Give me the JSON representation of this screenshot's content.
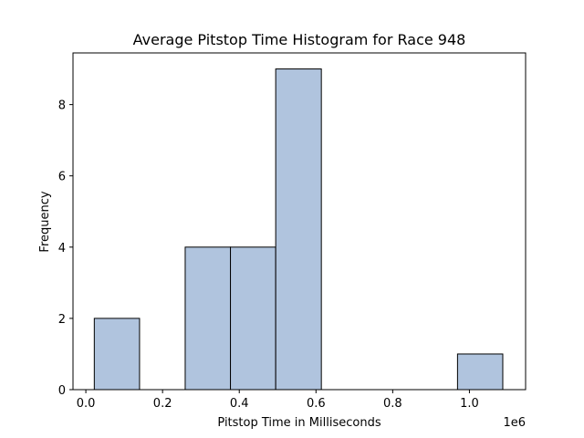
{
  "chart_data": {
    "type": "bar",
    "title": "Average Pitstop Time Histogram for Race 948",
    "xlabel": "Pitstop Time in Milliseconds",
    "ylabel": "Frequency",
    "x_offset_label": "1e6",
    "xlim": [
      -0.0335,
      1.1465
    ],
    "ylim": [
      0,
      9.45
    ],
    "x_ticks": [
      0.0,
      0.2,
      0.4,
      0.6,
      0.8,
      1.0
    ],
    "x_tick_labels": [
      "0.0",
      "0.2",
      "0.4",
      "0.6",
      "0.8",
      "1.0"
    ],
    "y_ticks": [
      0,
      2,
      4,
      6,
      8
    ],
    "y_tick_labels": [
      "0",
      "2",
      "4",
      "6",
      "8"
    ],
    "bar_color": "#b0c4de",
    "edge_color": "#000000",
    "bins": [
      {
        "start": 0.022,
        "end": 0.14,
        "count": 2
      },
      {
        "start": 0.14,
        "end": 0.259,
        "count": 0
      },
      {
        "start": 0.259,
        "end": 0.377,
        "count": 4
      },
      {
        "start": 0.377,
        "end": 0.495,
        "count": 4
      },
      {
        "start": 0.495,
        "end": 0.614,
        "count": 9
      },
      {
        "start": 0.614,
        "end": 0.732,
        "count": 0
      },
      {
        "start": 0.732,
        "end": 0.85,
        "count": 0
      },
      {
        "start": 0.85,
        "end": 0.969,
        "count": 0
      },
      {
        "start": 0.969,
        "end": 1.087,
        "count": 1
      }
    ]
  }
}
